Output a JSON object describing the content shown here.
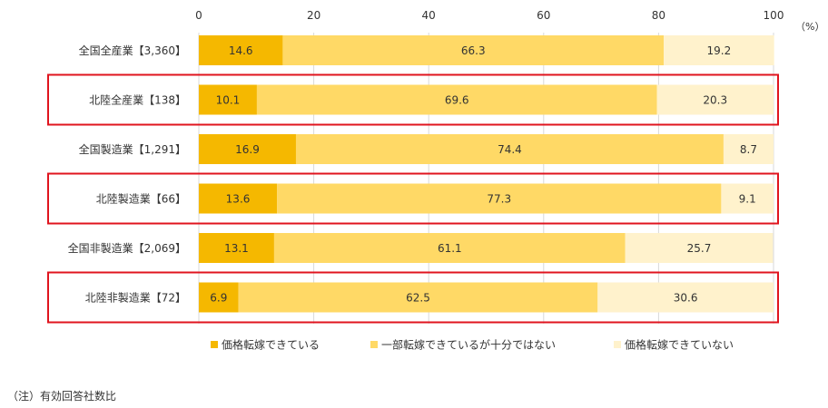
{
  "chart_data": {
    "type": "bar",
    "orientation": "horizontal",
    "stacked": true,
    "unit_label": "（%）",
    "xlim": [
      0,
      100
    ],
    "xticks": [
      0,
      20,
      40,
      60,
      80,
      100
    ],
    "categories": [
      "全国全産業【3,360】",
      "北陸全産業【138】",
      "全国製造業【1,291】",
      "北陸製造業【66】",
      "全国非製造業【2,069】",
      "北陸非製造業【72】"
    ],
    "highlighted": [
      false,
      true,
      false,
      true,
      false,
      true
    ],
    "highlight_color": "#E0141E",
    "series": [
      {
        "name": "価格転嫁できている",
        "color": "#F5B800",
        "values": [
          14.6,
          10.1,
          16.9,
          13.6,
          13.1,
          6.9
        ]
      },
      {
        "name": "一部転嫁できているが十分ではない",
        "color": "#FFD966",
        "values": [
          66.3,
          69.6,
          74.4,
          77.3,
          61.1,
          62.5
        ]
      },
      {
        "name": "価格転嫁できていない",
        "color": "#FFF2CC",
        "values": [
          19.2,
          20.3,
          8.7,
          9.1,
          25.7,
          30.6
        ]
      }
    ],
    "legend_position": "bottom"
  },
  "note": "（注）有効回答社数比"
}
